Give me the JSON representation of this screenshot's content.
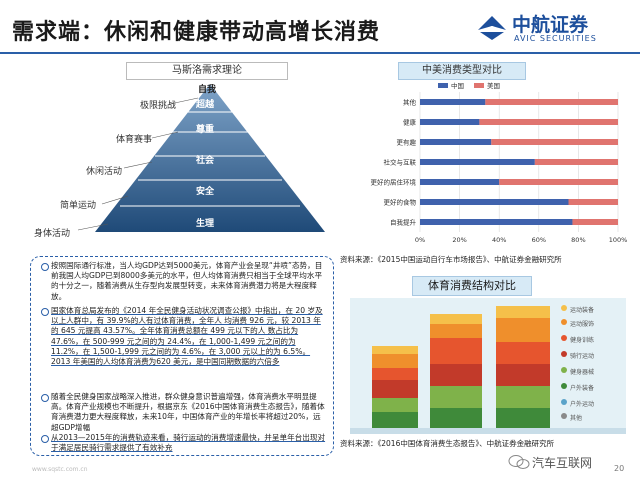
{
  "header": {
    "title": "需求端：休闲和健康带动高增长消费",
    "logo_name": "中航证券",
    "logo_sub": "AVIC SECURITIES"
  },
  "pyramid": {
    "panel_title": "马斯洛需求理论",
    "levels": [
      "极限挑战",
      "体育赛事",
      "休闲活动",
      "简单运动",
      "身体活动"
    ],
    "tiers": [
      "自我",
      "超越",
      "尊重",
      "社会",
      "安全",
      "生理"
    ]
  },
  "consumption_chart": {
    "panel_title": "中美消费类型对比",
    "colors": {
      "china": "#3f62ad",
      "usa": "#e0746f"
    }
  },
  "chart_data": {
    "type": "bar",
    "orientation": "horizontal",
    "stacked": true,
    "categories": [
      "其他",
      "健康",
      "更有趣",
      "社交与互联",
      "更好的居住环境",
      "更好的食物",
      "自我提升"
    ],
    "series": [
      {
        "name": "中国",
        "values": [
          33,
          30,
          36,
          58,
          40,
          75,
          77
        ]
      },
      {
        "name": "美国",
        "values": [
          67,
          70,
          64,
          42,
          60,
          25,
          23
        ]
      }
    ],
    "xticks": [
      "0%",
      "20%",
      "40%",
      "60%",
      "80%",
      "100%"
    ],
    "xlim": [
      0,
      100
    ],
    "legend": "top-left"
  },
  "sources": {
    "consumption": "资料来源：《2015中国运动自行车市场报告》、中航证券金融研究所",
    "sports": "资料来源：《2016中国体育消费生态报告》、中航证券金融研究所"
  },
  "textbox": {
    "bullets": [
      "按照国际通行标准，当人均GDP达到5000美元，体育产业会呈现“井喷”态势，目前我国人均GDP已到8000多美元的水平，但人均体育消费只相当于全球平均水平的十分之一，随着消费从生存型向发展型转变，未来体育消费潜力将是大程度释放。",
      "国家体育总局发布的《2014 年全民健身活动状况调查公报》中指出，在 20 岁及以上人群中，有 39.9%的人有过体育消费，全年人 均消费 926 元，较 2013 年的 645 元提高 43.57%。全年体育消费总额在 499 元以下的人 数占比为 47.6%，在 500-999 元之间的为 24.4%，在 1,000-1,499 元之间的为 11.2%，在 1,500-1,999 元之间的为 4.6%，在 3,000 元以上的为 6.5%。2013 年美国的人均体育消费为620 美元，是中国同期数据的六倍多",
      "随着全民健身国家战略深入推进，群众健身意识普遍增强，体育消费水平明显提高。体育产业规模也不断提升，根据京东《2016中国体育消费生态报告》，随着体育消费潜力更大程度释放，未来10年，中国体育产业的年增长率将超过20%，远超GDP增幅",
      "从2013—2015年的消费轨迹来看，骑行运动的消费增速最快，并呈单年台出现对于满足居民骑行需求提供了有效补充"
    ]
  },
  "sports": {
    "panel_title": "体育消费结构对比",
    "legend": [
      "运动装备",
      "运动服饰",
      "健身训练",
      "骑行运动",
      "健身器械",
      "户外装备",
      "户外运动",
      "其他"
    ]
  },
  "footer": {
    "website": "www.sqstc.com.cn",
    "watermark": "汽车互联网",
    "page": "20"
  }
}
